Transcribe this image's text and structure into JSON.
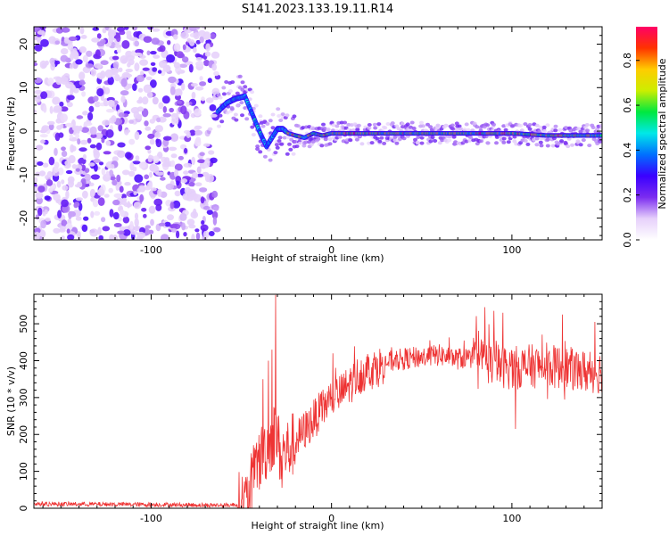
{
  "title": "S141.2023.133.19.11.R14",
  "chart_data": [
    {
      "type": "heatmap",
      "name": "spectrogram",
      "xlabel": "Height of straight line (km)",
      "ylabel": "Frequency (Hz)",
      "xlim": [
        -165,
        150
      ],
      "ylim": [
        -25,
        24
      ],
      "xticks": [
        -100,
        0,
        100
      ],
      "yticks": [
        -20,
        -10,
        0,
        10,
        20
      ],
      "noise_region_x": [
        -165,
        -63
      ],
      "signal_track": {
        "x": [
          -63,
          -58,
          -53,
          -48,
          -45,
          -42,
          -39,
          -36,
          -33,
          -30,
          -27,
          -24,
          -20,
          -15,
          -10,
          -5,
          0,
          20,
          40,
          60,
          80,
          100,
          120,
          150
        ],
        "frequency": [
          4.5,
          6.5,
          7.5,
          8,
          5,
          2,
          -1,
          -3.5,
          -1.5,
          0.5,
          0.5,
          -0.5,
          -1,
          -1.5,
          -0.5,
          -1,
          -0.5,
          -0.5,
          -0.5,
          -0.5,
          -0.5,
          -0.5,
          -1,
          -1
        ]
      },
      "colorbar": {
        "label": "Normalized spectral amplitude",
        "range": [
          0,
          0.95
        ],
        "ticks": [
          "0.0",
          "0.2",
          "0.4",
          "0.6",
          "0.8"
        ],
        "colors": [
          "#ffffff",
          "#e6d0fb",
          "#7b2cf0",
          "#3a00ff",
          "#0070ff",
          "#00e8e8",
          "#00e840",
          "#ccee00",
          "#ffcc00",
          "#ff3300",
          "#ff0066"
        ]
      }
    },
    {
      "type": "line",
      "name": "snr",
      "xlabel": "Height of straight line (km)",
      "ylabel": "SNR (10 * v/v)",
      "xlim": [
        -165,
        150
      ],
      "ylim": [
        0,
        580
      ],
      "xticks": [
        -100,
        0,
        100
      ],
      "yticks": [
        0,
        100,
        200,
        300,
        400,
        500
      ],
      "color": "#ee3333",
      "trend": {
        "x": [
          -165,
          -100,
          -60,
          -52,
          -46,
          -42,
          -38,
          -35,
          -31,
          -28,
          -22,
          -15,
          -10,
          -5,
          0,
          5,
          10,
          15,
          20,
          25,
          30,
          40,
          50,
          60,
          70,
          80,
          90,
          100,
          110,
          120,
          130,
          140,
          150
        ],
        "y": [
          12,
          10,
          8,
          10,
          20,
          110,
          150,
          170,
          210,
          140,
          170,
          210,
          240,
          270,
          300,
          310,
          335,
          360,
          375,
          380,
          395,
          405,
          410,
          415,
          405,
          410,
          390,
          380,
          385,
          385,
          380,
          370,
          370
        ]
      },
      "spikes": [
        {
          "x": -31,
          "y": 578
        },
        {
          "x": -33,
          "y": 430
        },
        {
          "x": -35,
          "y": 400
        },
        {
          "x": -38,
          "y": 350
        },
        {
          "x": 85,
          "y": 545
        },
        {
          "x": 90,
          "y": 535
        },
        {
          "x": 95,
          "y": 530
        },
        {
          "x": 102,
          "y": 215
        },
        {
          "x": 128,
          "y": 525
        },
        {
          "x": 146,
          "y": 505
        }
      ]
    }
  ]
}
